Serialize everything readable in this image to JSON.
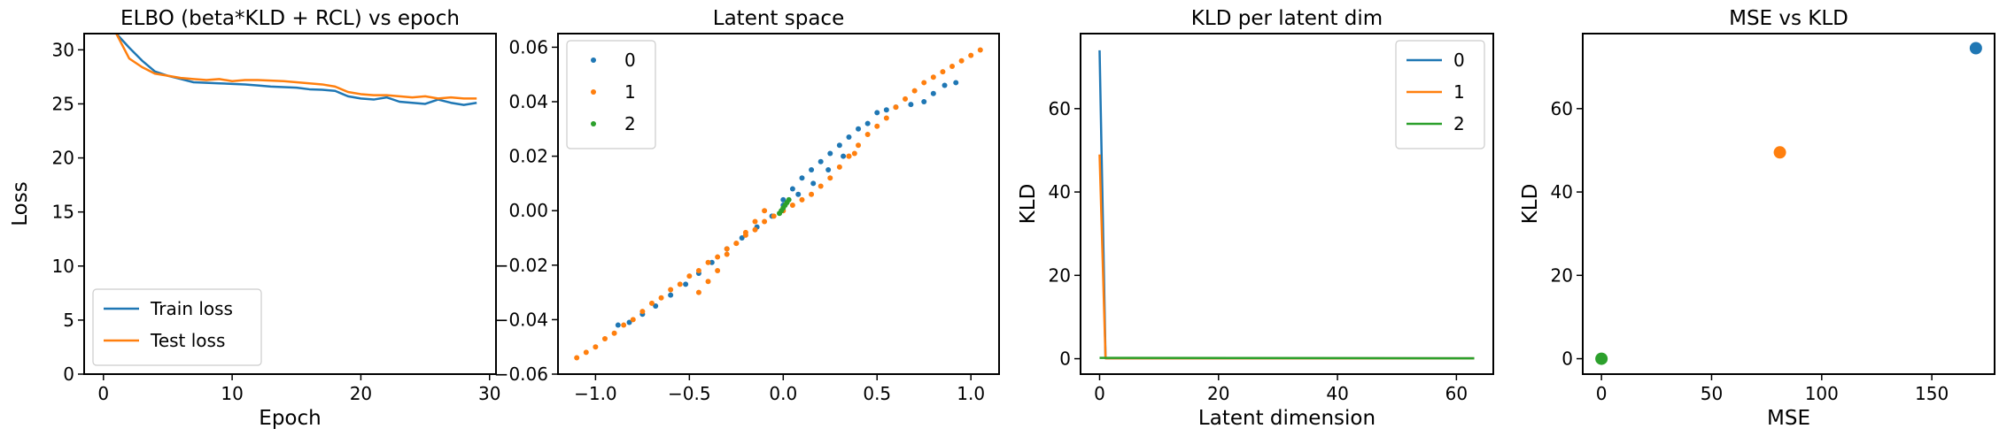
{
  "chart_data": [
    {
      "type": "line",
      "title": "ELBO (beta*KLD + RCL) vs epoch",
      "xlabel": "Epoch",
      "ylabel": "Loss",
      "xlim": [
        -1.5,
        30.5
      ],
      "ylim": [
        0,
        31.5
      ],
      "xticks": [
        0,
        10,
        20,
        30
      ],
      "yticks": [
        0,
        5,
        10,
        15,
        20,
        25,
        30
      ],
      "legend_position": "lower-left",
      "series": [
        {
          "name": "Train loss",
          "color": "#1f77b4",
          "x": [
            1,
            2,
            3,
            4,
            5,
            6,
            7,
            8,
            9,
            10,
            11,
            12,
            13,
            14,
            15,
            16,
            17,
            18,
            19,
            20,
            21,
            22,
            23,
            24,
            25,
            26,
            27,
            28,
            29
          ],
          "y": [
            31.5,
            30.2,
            29.0,
            28.0,
            27.6,
            27.3,
            27.0,
            26.95,
            26.9,
            26.85,
            26.8,
            26.7,
            26.6,
            26.55,
            26.5,
            26.35,
            26.3,
            26.2,
            25.7,
            25.5,
            25.4,
            25.6,
            25.2,
            25.1,
            25.0,
            25.4,
            25.1,
            24.9,
            25.1
          ]
        },
        {
          "name": "Test loss",
          "color": "#ff7f0e",
          "x": [
            1,
            2,
            3,
            4,
            5,
            6,
            7,
            8,
            9,
            10,
            11,
            12,
            13,
            14,
            15,
            16,
            17,
            18,
            19,
            20,
            21,
            22,
            23,
            24,
            25,
            26,
            27,
            28,
            29
          ],
          "y": [
            31.5,
            29.2,
            28.4,
            27.8,
            27.6,
            27.4,
            27.3,
            27.2,
            27.3,
            27.1,
            27.2,
            27.2,
            27.15,
            27.1,
            27.0,
            26.9,
            26.8,
            26.6,
            26.1,
            25.9,
            25.8,
            25.8,
            25.7,
            25.6,
            25.7,
            25.5,
            25.6,
            25.5,
            25.5
          ]
        }
      ]
    },
    {
      "type": "scatter",
      "title": "Latent space",
      "xlabel": "",
      "ylabel": "",
      "xlim": [
        -1.2,
        1.15
      ],
      "ylim": [
        -0.06,
        0.065
      ],
      "xticks": [
        -1.0,
        -0.5,
        0.0,
        0.5,
        1.0
      ],
      "xtick_labels": [
        "−1.0",
        "−0.5",
        "0.0",
        "0.5",
        "1.0"
      ],
      "yticks": [
        -0.06,
        -0.04,
        -0.02,
        0.0,
        0.02,
        0.04,
        0.06
      ],
      "ytick_labels": [
        "−0.06",
        "−0.04",
        "−0.02",
        "0.00",
        "0.02",
        "0.04",
        "0.06"
      ],
      "legend_position": "top-left",
      "series": [
        {
          "name": "0",
          "color": "#1f77b4",
          "x": [
            -0.88,
            -0.82,
            -0.75,
            -0.68,
            -0.6,
            -0.52,
            -0.45,
            -0.38,
            -0.3,
            -0.22,
            -0.14,
            -0.06,
            0.0,
            0.05,
            0.1,
            0.15,
            0.2,
            0.25,
            0.3,
            0.35,
            0.4,
            0.45,
            0.5,
            0.55,
            0.6,
            0.68,
            0.75,
            0.8,
            0.86,
            0.92,
            0.0,
            0.08,
            0.16,
            0.24,
            0.32
          ],
          "y": [
            -0.042,
            -0.041,
            -0.038,
            -0.035,
            -0.031,
            -0.027,
            -0.023,
            -0.019,
            -0.014,
            -0.01,
            -0.006,
            -0.002,
            0.004,
            0.008,
            0.012,
            0.015,
            0.018,
            0.021,
            0.024,
            0.027,
            0.03,
            0.032,
            0.036,
            0.037,
            0.038,
            0.039,
            0.04,
            0.043,
            0.046,
            0.047,
            0.002,
            0.006,
            0.01,
            0.015,
            0.02
          ]
        },
        {
          "name": "1",
          "color": "#ff7f0e",
          "x": [
            -1.1,
            -1.05,
            -1.0,
            -0.95,
            -0.9,
            -0.85,
            -0.8,
            -0.75,
            -0.7,
            -0.65,
            -0.6,
            -0.55,
            -0.5,
            -0.45,
            -0.4,
            -0.35,
            -0.3,
            -0.25,
            -0.2,
            -0.15,
            -0.1,
            -0.05,
            0.0,
            0.05,
            0.1,
            0.15,
            0.2,
            0.25,
            0.3,
            0.35,
            0.4,
            0.45,
            0.5,
            0.55,
            0.6,
            0.65,
            0.7,
            0.75,
            0.8,
            0.85,
            0.9,
            0.95,
            1.0,
            1.05,
            -0.45,
            -0.4,
            -0.35,
            -0.3,
            -0.25,
            -0.2,
            -0.15,
            -0.1,
            0.35,
            0.38
          ],
          "y": [
            -0.054,
            -0.052,
            -0.05,
            -0.047,
            -0.045,
            -0.042,
            -0.04,
            -0.037,
            -0.034,
            -0.032,
            -0.029,
            -0.027,
            -0.024,
            -0.022,
            -0.019,
            -0.017,
            -0.014,
            -0.012,
            -0.009,
            -0.007,
            -0.004,
            -0.002,
            0.0,
            0.002,
            0.004,
            0.006,
            0.009,
            0.012,
            0.016,
            0.02,
            0.024,
            0.028,
            0.031,
            0.034,
            0.038,
            0.041,
            0.044,
            0.047,
            0.049,
            0.051,
            0.053,
            0.055,
            0.057,
            0.059,
            -0.03,
            -0.026,
            -0.022,
            -0.016,
            -0.012,
            -0.008,
            -0.004,
            0.0,
            0.02,
            0.021
          ]
        },
        {
          "name": "2",
          "color": "#2ca02c",
          "x": [
            -0.02,
            -0.01,
            0.0,
            0.01,
            0.02,
            0.03
          ],
          "y": [
            -0.001,
            0.0,
            0.001,
            0.002,
            0.003,
            0.004
          ]
        }
      ]
    },
    {
      "type": "line",
      "title": "KLD per latent dim",
      "xlabel": "Latent dimension",
      "ylabel": "KLD",
      "xlim": [
        -3.2,
        66.2
      ],
      "ylim": [
        -3.7,
        78
      ],
      "xticks": [
        0,
        20,
        40,
        60
      ],
      "yticks": [
        0,
        20,
        40,
        60
      ],
      "legend_position": "top-right",
      "series": [
        {
          "name": "0",
          "color": "#1f77b4",
          "x": [
            0,
            1,
            63
          ],
          "y": [
            74.0,
            0.1,
            0.1
          ]
        },
        {
          "name": "1",
          "color": "#ff7f0e",
          "x": [
            0,
            1,
            63
          ],
          "y": [
            49.0,
            0.1,
            0.1
          ]
        },
        {
          "name": "2",
          "color": "#2ca02c",
          "x": [
            0,
            1,
            63
          ],
          "y": [
            0.2,
            0.2,
            0.1
          ]
        }
      ]
    },
    {
      "type": "scatter",
      "title": "MSE vs KLD",
      "xlabel": "MSE",
      "ylabel": "KLD",
      "xlim": [
        -8.5,
        178.5
      ],
      "ylim": [
        -3.7,
        78
      ],
      "xticks": [
        0,
        50,
        100,
        150
      ],
      "yticks": [
        0,
        20,
        40,
        60
      ],
      "series": [
        {
          "color": "#1f77b4",
          "x": [
            170
          ],
          "y": [
            74.5
          ]
        },
        {
          "color": "#ff7f0e",
          "x": [
            81
          ],
          "y": [
            49.5
          ]
        },
        {
          "color": "#2ca02c",
          "x": [
            0
          ],
          "y": [
            0
          ]
        }
      ]
    }
  ]
}
